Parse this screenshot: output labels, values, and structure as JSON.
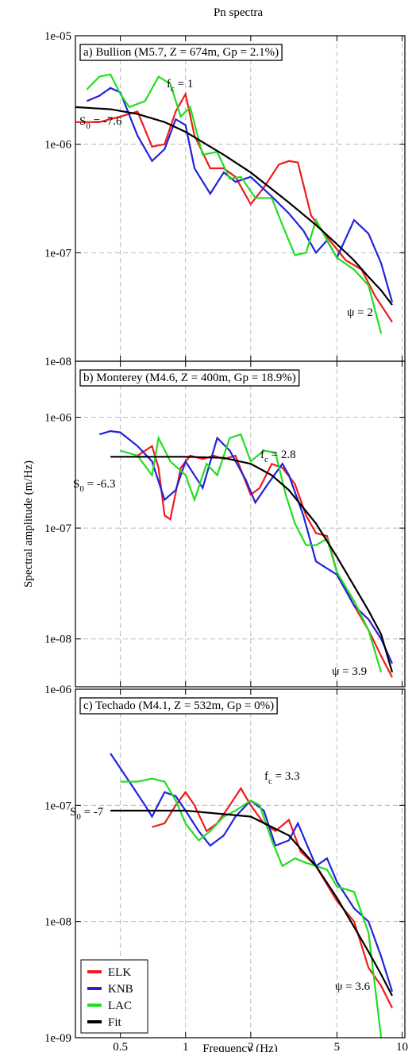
{
  "chart_data": [
    {
      "type": "line",
      "title": "Pn spectra",
      "label": "a) Bullion (M5.7, Z = 674m, Gp = 2.1%)",
      "xscale": "log",
      "yscale": "log",
      "grid": true,
      "xlim": [
        0.31,
        10.3
      ],
      "ylim": [
        1e-08,
        1e-05
      ],
      "yticks": [
        {
          "value": 1e-05,
          "label": "1e-05"
        },
        {
          "value": 1e-06,
          "label": "1e-06"
        },
        {
          "value": 1e-07,
          "label": "1e-07"
        },
        {
          "value": 1e-08,
          "label": "1e-08"
        }
      ],
      "annotations": [
        {
          "base": "S",
          "sub": "0",
          "rest": " = -7.6"
        },
        {
          "base": "f",
          "sub": "c",
          "rest": " = 1"
        },
        {
          "base": "ψ = 2"
        }
      ],
      "series": [
        {
          "name": "ELK",
          "color": "#ee1c1c",
          "x": [
            0.31,
            0.4,
            0.5,
            0.6,
            0.7,
            0.8,
            0.9,
            1.0,
            1.1,
            1.3,
            1.5,
            1.7,
            2,
            2.3,
            2.7,
            3,
            3.3,
            3.8,
            4.5,
            5.5,
            6.5,
            7.5,
            9
          ],
          "values": [
            1.6e-06,
            1.6e-06,
            1.8e-06,
            2e-06,
            9.5e-07,
            1e-06,
            2e-06,
            2.9e-06,
            1.2e-06,
            6e-07,
            6e-07,
            5e-07,
            2.8e-07,
            4e-07,
            6.5e-07,
            7e-07,
            6.8e-07,
            2.2e-07,
            1.4e-07,
            8.5e-08,
            7e-08,
            4e-08,
            2.3e-08
          ]
        },
        {
          "name": "KNB",
          "color": "#2222dd",
          "x": [
            0.35,
            0.4,
            0.45,
            0.5,
            0.6,
            0.7,
            0.8,
            0.9,
            1,
            1.1,
            1.3,
            1.5,
            1.7,
            2,
            2.5,
            3,
            3.5,
            4,
            4.5,
            5,
            6,
            7,
            8,
            9
          ],
          "values": [
            2.5e-06,
            2.8e-06,
            3.3e-06,
            3e-06,
            1.2e-06,
            7e-07,
            9e-07,
            1.7e-06,
            1.5e-06,
            6e-07,
            3.5e-07,
            5.5e-07,
            4.5e-07,
            5e-07,
            3.3e-07,
            2.3e-07,
            1.6e-07,
            1e-07,
            1.3e-07,
            9e-08,
            2e-07,
            1.5e-07,
            8e-08,
            3.5e-08
          ]
        },
        {
          "name": "LAC",
          "color": "#22dd22",
          "x": [
            0.35,
            0.4,
            0.45,
            0.5,
            0.55,
            0.65,
            0.75,
            0.85,
            0.95,
            1.05,
            1.2,
            1.4,
            1.6,
            1.8,
            2.1,
            2.5,
            2.8,
            3.2,
            3.6,
            4,
            5,
            6,
            7,
            8
          ],
          "values": [
            3.2e-06,
            4.2e-06,
            4.4e-06,
            2.9e-06,
            2.2e-06,
            2.5e-06,
            4.2e-06,
            3.6e-06,
            1.8e-06,
            2.2e-06,
            8e-07,
            8.5e-07,
            4.8e-07,
            5e-07,
            3.2e-07,
            3.2e-07,
            1.8e-07,
            9.5e-08,
            1e-07,
            2e-07,
            9e-08,
            7e-08,
            5e-08,
            1.8e-08
          ]
        },
        {
          "name": "Fit",
          "color": "#000000",
          "x": [
            0.31,
            0.45,
            0.6,
            0.8,
            1,
            1.5,
            2,
            3,
            4,
            5,
            6,
            7,
            8,
            9
          ],
          "values": [
            2.2e-06,
            2.1e-06,
            1.9e-06,
            1.6e-06,
            1.3e-06,
            8e-07,
            5.5e-07,
            2.9e-07,
            1.8e-07,
            1.2e-07,
            8.5e-08,
            6e-08,
            4.5e-08,
            3.3e-08
          ]
        }
      ]
    },
    {
      "type": "line",
      "label": "b) Monterey (M4.6, Z = 400m, Gp = 18.9%)",
      "ylabel": "Spectral amplitude (m/Hz)",
      "xscale": "log",
      "yscale": "log",
      "grid": true,
      "xlim": [
        0.31,
        10.3
      ],
      "ylim": [
        3.7e-09,
        3.2e-06
      ],
      "yticks": [
        {
          "value": 1e-06,
          "label": "1e-06"
        },
        {
          "value": 1e-07,
          "label": "1e-07"
        },
        {
          "value": 1e-08,
          "label": "1e-08"
        }
      ],
      "annotations": [
        {
          "base": "f",
          "sub": "c",
          "rest": " = 2.8"
        },
        {
          "base": "S",
          "sub": "0",
          "rest": " = -6.3"
        },
        {
          "base": "ψ = 3.9"
        }
      ],
      "series": [
        {
          "name": "ELK",
          "color": "#ee1c1c",
          "x": [
            0.6,
            0.7,
            0.75,
            0.8,
            0.85,
            0.95,
            1.05,
            1.2,
            1.35,
            1.5,
            1.7,
            2,
            2.2,
            2.5,
            2.8,
            3.2,
            3.6,
            4,
            4.5,
            5,
            6,
            7,
            8,
            9
          ],
          "values": [
            4.5e-07,
            5.5e-07,
            3.5e-07,
            1.3e-07,
            1.2e-07,
            3.5e-07,
            4.5e-07,
            4.2e-07,
            4.5e-07,
            4.2e-07,
            4.5e-07,
            2e-07,
            2.3e-07,
            3.8e-07,
            3.5e-07,
            2.5e-07,
            1.3e-07,
            9e-08,
            8.5e-08,
            4e-08,
            2e-08,
            1.2e-08,
            7e-09,
            4.5e-09
          ]
        },
        {
          "name": "KNB",
          "color": "#2222dd",
          "x": [
            0.4,
            0.45,
            0.5,
            0.6,
            0.7,
            0.8,
            0.9,
            1,
            1.2,
            1.4,
            1.6,
            1.9,
            2.1,
            2.4,
            2.8,
            3,
            3.5,
            4,
            5,
            6,
            7,
            8,
            9
          ],
          "values": [
            7e-07,
            7.5e-07,
            7.3e-07,
            5.5e-07,
            4e-07,
            1.8e-07,
            2.2e-07,
            4e-07,
            2.3e-07,
            6.5e-07,
            5e-07,
            2.7e-07,
            1.7e-07,
            2.5e-07,
            3.8e-07,
            3e-07,
            1.3e-07,
            5e-08,
            3.8e-08,
            2e-08,
            1.5e-08,
            1e-08,
            6e-09
          ]
        },
        {
          "name": "LAC",
          "color": "#22dd22",
          "x": [
            0.5,
            0.6,
            0.7,
            0.75,
            0.85,
            1,
            1.1,
            1.25,
            1.4,
            1.6,
            1.8,
            2,
            2.3,
            2.6,
            2.9,
            3.2,
            3.6,
            4,
            4.5,
            5,
            6,
            7,
            8
          ],
          "values": [
            5e-07,
            4.5e-07,
            3e-07,
            6.5e-07,
            4e-07,
            3e-07,
            1.8e-07,
            3.8e-07,
            3e-07,
            6.5e-07,
            7e-07,
            4e-07,
            5e-07,
            4.8e-07,
            2e-07,
            1.1e-07,
            7e-08,
            7e-08,
            8e-08,
            4e-08,
            2.2e-08,
            1.2e-08,
            5e-09
          ]
        },
        {
          "name": "Fit",
          "color": "#000000",
          "x": [
            0.45,
            1,
            1.5,
            2,
            2.5,
            3,
            4,
            5,
            6,
            7,
            8,
            9
          ],
          "values": [
            4.4e-07,
            4.4e-07,
            4.3e-07,
            3.8e-07,
            3e-07,
            2.2e-07,
            1.1e-07,
            5.5e-08,
            3e-08,
            1.8e-08,
            1.1e-08,
            5e-09
          ]
        }
      ]
    },
    {
      "type": "line",
      "label": "c) Techado (M4.1, Z = 532m, Gp = 0%)",
      "xlabel": "Frequency (Hz)",
      "xscale": "log",
      "yscale": "log",
      "grid": true,
      "legend": "lower left",
      "xlim": [
        0.31,
        10.3
      ],
      "ylim": [
        1e-09,
        1e-06
      ],
      "xticks": [
        0.5,
        1,
        2,
        5,
        10
      ],
      "yticks": [
        {
          "value": 1e-06,
          "label": "1e-06"
        },
        {
          "value": 1e-07,
          "label": "1e-07"
        },
        {
          "value": 1e-08,
          "label": "1e-08"
        },
        {
          "value": 1e-09,
          "label": "1e-09"
        }
      ],
      "annotations": [
        {
          "base": "f",
          "sub": "c",
          "rest": " = 3.3"
        },
        {
          "base": "S",
          "sub": "0",
          "rest": " = -7"
        },
        {
          "base": "ψ = 3.6"
        }
      ],
      "series": [
        {
          "name": "ELK",
          "color": "#ee1c1c",
          "x": [
            0.7,
            0.8,
            0.9,
            1,
            1.1,
            1.25,
            1.4,
            1.6,
            1.8,
            2,
            2.3,
            2.6,
            3,
            3.4,
            4,
            5,
            6,
            7,
            8,
            9
          ],
          "values": [
            6.5e-08,
            7e-08,
            1e-07,
            1.3e-07,
            1e-07,
            6e-08,
            7e-08,
            1e-07,
            1.4e-07,
            1e-07,
            7e-08,
            6e-08,
            7.5e-08,
            4e-08,
            3e-08,
            1.5e-08,
            1e-08,
            4e-09,
            2.8e-09,
            1.8e-09
          ]
        },
        {
          "name": "KNB",
          "color": "#2222dd",
          "x": [
            0.45,
            0.55,
            0.65,
            0.7,
            0.8,
            0.9,
            1,
            1.15,
            1.3,
            1.5,
            1.7,
            2,
            2.3,
            2.6,
            3,
            3.3,
            4,
            4.5,
            5,
            6,
            7,
            8,
            9
          ],
          "values": [
            2.8e-07,
            1.6e-07,
            1e-07,
            8e-08,
            1.3e-07,
            1.2e-07,
            9e-08,
            6e-08,
            4.5e-08,
            5.5e-08,
            8e-08,
            1.1e-07,
            9e-08,
            4.5e-08,
            5e-08,
            7e-08,
            3e-08,
            3.5e-08,
            2.2e-08,
            1.3e-08,
            1e-08,
            5e-09,
            2.5e-09
          ]
        },
        {
          "name": "LAC",
          "color": "#22dd22",
          "x": [
            0.5,
            0.6,
            0.7,
            0.8,
            0.9,
            1,
            1.15,
            1.3,
            1.5,
            1.7,
            2,
            2.2,
            2.5,
            2.8,
            3.2,
            3.6,
            4,
            4.5,
            5,
            6,
            7,
            8
          ],
          "values": [
            1.6e-07,
            1.6e-07,
            1.7e-07,
            1.6e-07,
            1.1e-07,
            7e-08,
            5e-08,
            6e-08,
            8e-08,
            9e-08,
            1.1e-07,
            1e-07,
            5e-08,
            3e-08,
            3.5e-08,
            3.2e-08,
            3e-08,
            2.8e-08,
            2e-08,
            1.8e-08,
            8e-09,
            1e-09
          ]
        },
        {
          "name": "Fit",
          "color": "#000000",
          "x": [
            0.45,
            1,
            2,
            3,
            4,
            5,
            6,
            7,
            8,
            9
          ],
          "values": [
            9e-08,
            9e-08,
            8e-08,
            5.5e-08,
            3e-08,
            1.6e-08,
            9e-09,
            5.5e-09,
            3.5e-09,
            2.3e-09
          ]
        }
      ]
    }
  ]
}
